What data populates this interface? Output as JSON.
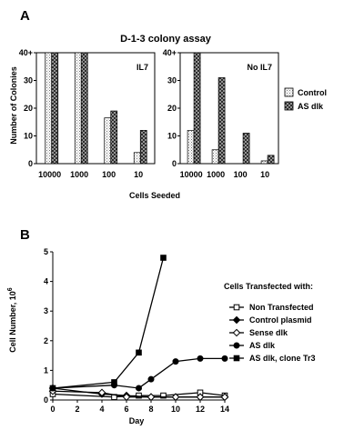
{
  "panel_a": {
    "label": "A"
  },
  "panel_b": {
    "label": "B"
  },
  "chart_data": [
    {
      "type": "bar",
      "title": "D-1-3 colony assay",
      "xlabel": "Cells Seeded",
      "ylabel": "Number of Colonies",
      "ylim": [
        0,
        40
      ],
      "yticks": [
        "0",
        "10",
        "20",
        "30",
        "40+"
      ],
      "categories": [
        "10000",
        "1000",
        "100",
        "10"
      ],
      "legend": {
        "placement": "right",
        "entries": [
          "Control",
          "AS dlk"
        ]
      },
      "colors": {
        "Control": "#dcdcdc",
        "AS dlk": "#8a8a8a"
      },
      "subplots": [
        {
          "label": "IL7",
          "series": [
            {
              "name": "Control",
              "values": [
                40,
                40,
                16.5,
                4
              ]
            },
            {
              "name": "AS dlk",
              "values": [
                40,
                40,
                19,
                12
              ]
            }
          ]
        },
        {
          "label": "No IL7",
          "series": [
            {
              "name": "Control",
              "values": [
                12,
                5,
                0,
                1
              ]
            },
            {
              "name": "AS dlk",
              "values": [
                40,
                31,
                11,
                3
              ]
            }
          ]
        }
      ]
    },
    {
      "type": "line",
      "xlabel": "Day",
      "ylabel": "Cell Number, 10",
      "ylabel_superscript": "6",
      "xlim": [
        0,
        14
      ],
      "ylim": [
        0,
        5
      ],
      "xticks": [
        0,
        2,
        4,
        6,
        8,
        10,
        12,
        14
      ],
      "yticks": [
        0,
        1,
        2,
        3,
        4,
        5
      ],
      "legend": {
        "placement": "right",
        "title": "Cells Transfected with:"
      },
      "series": [
        {
          "name": "Non Transfected",
          "marker": "open-square",
          "x": [
            0,
            5,
            7,
            9,
            12,
            14
          ],
          "y": [
            0.2,
            0.1,
            0.15,
            0.15,
            0.25,
            0.15
          ]
        },
        {
          "name": "Control plasmid",
          "marker": "filled-diamond",
          "x": [
            0,
            4,
            6,
            8,
            10,
            12,
            14
          ],
          "y": [
            0.4,
            0.2,
            0.15,
            0.1,
            0.1,
            0.1,
            0.1
          ]
        },
        {
          "name": "Sense dlk",
          "marker": "open-diamond",
          "x": [
            0,
            4,
            6,
            8,
            10,
            12,
            14
          ],
          "y": [
            0.3,
            0.25,
            0.1,
            0.1,
            0.1,
            0.1,
            0.1
          ]
        },
        {
          "name": "AS dlk",
          "marker": "filled-circle",
          "x": [
            0,
            5,
            7,
            8,
            10,
            12,
            14
          ],
          "y": [
            0.4,
            0.5,
            0.4,
            0.7,
            1.3,
            1.4,
            1.4
          ]
        },
        {
          "name": "AS dlk, clone Tr3",
          "marker": "filled-square",
          "x": [
            0,
            5,
            7,
            9
          ],
          "y": [
            0.4,
            0.6,
            1.6,
            4.8
          ]
        }
      ]
    }
  ]
}
